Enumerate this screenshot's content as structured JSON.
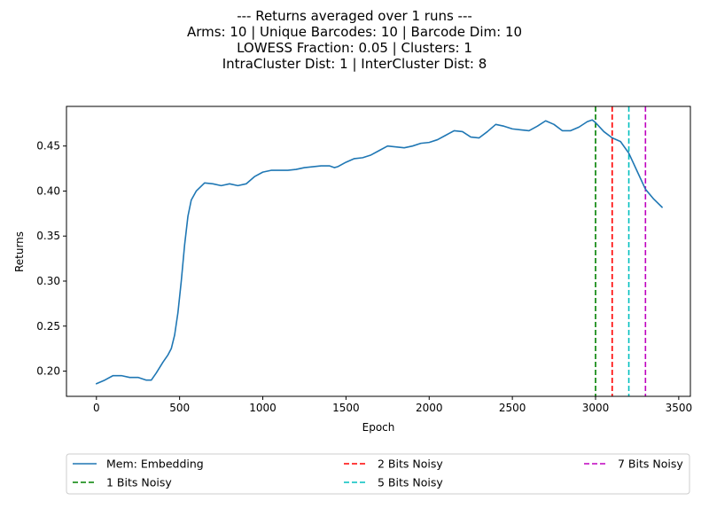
{
  "chart_data": {
    "type": "line",
    "title_lines": [
      "--- Returns averaged over 1 runs ---",
      "Arms: 10 | Unique Barcodes: 10 | Barcode Dim: 10",
      "LOWESS Fraction: 0.05 | Clusters: 1",
      "IntraCluster Dist: 1 | InterCluster Dist: 8"
    ],
    "xlabel": "Epoch",
    "ylabel": "Returns",
    "xlim": [
      -180,
      3570
    ],
    "ylim": [
      0.172,
      0.494
    ],
    "xticks": [
      0,
      500,
      1000,
      1500,
      2000,
      2500,
      3000,
      3500
    ],
    "yticks": [
      0.2,
      0.25,
      0.3,
      0.35,
      0.4,
      0.45
    ],
    "xtick_labels": [
      "0",
      "500",
      "1000",
      "1500",
      "2000",
      "2500",
      "3000",
      "3500"
    ],
    "ytick_labels": [
      "0.20",
      "0.25",
      "0.30",
      "0.35",
      "0.40",
      "0.45"
    ],
    "grid": false,
    "legend_position": "below plot, three columns",
    "series": [
      {
        "name": "Mem: Embedding",
        "color": "#1f77b4",
        "style": "solid",
        "x": [
          0,
          50,
          100,
          150,
          200,
          250,
          300,
          330,
          360,
          400,
          430,
          450,
          470,
          490,
          510,
          530,
          550,
          570,
          600,
          650,
          700,
          750,
          800,
          850,
          900,
          950,
          1000,
          1050,
          1100,
          1150,
          1200,
          1250,
          1300,
          1350,
          1400,
          1430,
          1450,
          1500,
          1550,
          1600,
          1650,
          1700,
          1750,
          1800,
          1850,
          1900,
          1950,
          2000,
          2050,
          2100,
          2150,
          2200,
          2250,
          2300,
          2350,
          2400,
          2450,
          2500,
          2550,
          2600,
          2650,
          2700,
          2750,
          2800,
          2850,
          2900,
          2950,
          2980,
          3000,
          3050,
          3100,
          3150,
          3200,
          3250,
          3300,
          3350,
          3400
        ],
        "y": [
          0.186,
          0.19,
          0.195,
          0.195,
          0.193,
          0.193,
          0.19,
          0.19,
          0.198,
          0.21,
          0.218,
          0.225,
          0.24,
          0.265,
          0.3,
          0.34,
          0.372,
          0.39,
          0.4,
          0.409,
          0.408,
          0.406,
          0.408,
          0.406,
          0.408,
          0.416,
          0.421,
          0.423,
          0.423,
          0.423,
          0.424,
          0.426,
          0.427,
          0.428,
          0.428,
          0.426,
          0.427,
          0.432,
          0.436,
          0.437,
          0.44,
          0.445,
          0.45,
          0.449,
          0.448,
          0.45,
          0.453,
          0.454,
          0.457,
          0.462,
          0.467,
          0.466,
          0.46,
          0.459,
          0.466,
          0.474,
          0.472,
          0.469,
          0.468,
          0.467,
          0.472,
          0.478,
          0.474,
          0.467,
          0.467,
          0.471,
          0.477,
          0.479,
          0.476,
          0.466,
          0.459,
          0.455,
          0.442,
          0.422,
          0.402,
          0.391,
          0.382
        ]
      }
    ],
    "vlines": [
      {
        "name": "1 Bits Noisy",
        "x": 3000,
        "color": "#008000",
        "style": "dashed"
      },
      {
        "name": "2 Bits Noisy",
        "x": 3100,
        "color": "#ff0000",
        "style": "dashed"
      },
      {
        "name": "5 Bits Noisy",
        "x": 3200,
        "color": "#00bfbf",
        "style": "dashed"
      },
      {
        "name": "7 Bits Noisy",
        "x": 3300,
        "color": "#bf00bf",
        "style": "dashed"
      }
    ],
    "legend_order": [
      "Mem: Embedding",
      "1 Bits Noisy",
      "2 Bits Noisy",
      "5 Bits Noisy",
      "7 Bits Noisy"
    ]
  }
}
